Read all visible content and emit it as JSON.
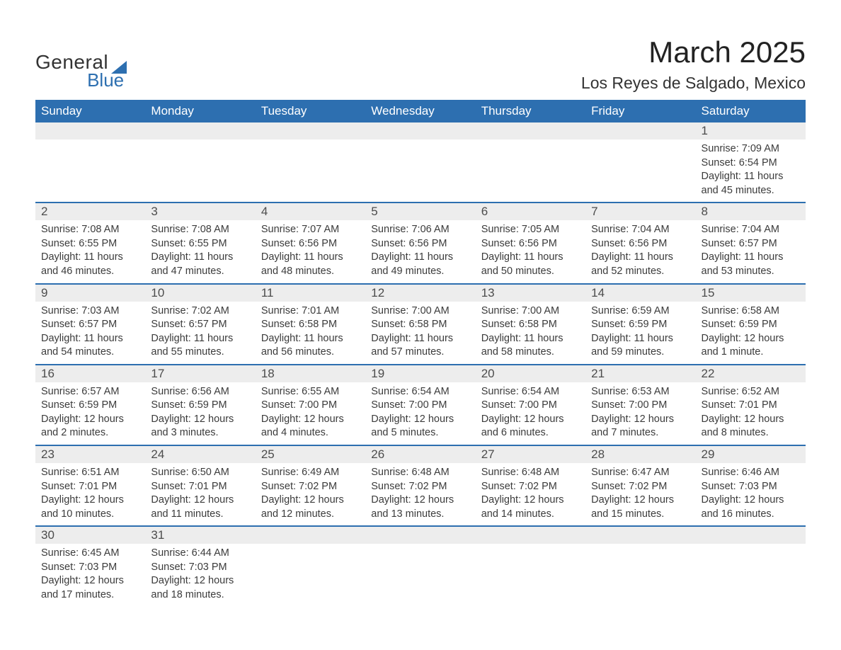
{
  "logo": {
    "line1": "General",
    "line2": "Blue"
  },
  "title": "March 2025",
  "location": "Los Reyes de Salgado, Mexico",
  "colors": {
    "header_bg": "#2d6fb0",
    "header_fg": "#ffffff",
    "daynum_bg": "#ededed",
    "text": "#3b3b3b",
    "row_border": "#2d6fb0",
    "page_bg": "#ffffff",
    "logo_accent": "#2d6fb0"
  },
  "type": "table",
  "columns": [
    "Sunday",
    "Monday",
    "Tuesday",
    "Wednesday",
    "Thursday",
    "Friday",
    "Saturday"
  ],
  "font": {
    "body_size_pt": 11,
    "title_size_pt": 32,
    "location_size_pt": 17,
    "header_size_pt": 13
  },
  "weeks": [
    [
      null,
      null,
      null,
      null,
      null,
      null,
      {
        "day": "1",
        "sunrise": "7:09 AM",
        "sunset": "6:54 PM",
        "daylight": "11 hours and 45 minutes."
      }
    ],
    [
      {
        "day": "2",
        "sunrise": "7:08 AM",
        "sunset": "6:55 PM",
        "daylight": "11 hours and 46 minutes."
      },
      {
        "day": "3",
        "sunrise": "7:08 AM",
        "sunset": "6:55 PM",
        "daylight": "11 hours and 47 minutes."
      },
      {
        "day": "4",
        "sunrise": "7:07 AM",
        "sunset": "6:56 PM",
        "daylight": "11 hours and 48 minutes."
      },
      {
        "day": "5",
        "sunrise": "7:06 AM",
        "sunset": "6:56 PM",
        "daylight": "11 hours and 49 minutes."
      },
      {
        "day": "6",
        "sunrise": "7:05 AM",
        "sunset": "6:56 PM",
        "daylight": "11 hours and 50 minutes."
      },
      {
        "day": "7",
        "sunrise": "7:04 AM",
        "sunset": "6:56 PM",
        "daylight": "11 hours and 52 minutes."
      },
      {
        "day": "8",
        "sunrise": "7:04 AM",
        "sunset": "6:57 PM",
        "daylight": "11 hours and 53 minutes."
      }
    ],
    [
      {
        "day": "9",
        "sunrise": "7:03 AM",
        "sunset": "6:57 PM",
        "daylight": "11 hours and 54 minutes."
      },
      {
        "day": "10",
        "sunrise": "7:02 AM",
        "sunset": "6:57 PM",
        "daylight": "11 hours and 55 minutes."
      },
      {
        "day": "11",
        "sunrise": "7:01 AM",
        "sunset": "6:58 PM",
        "daylight": "11 hours and 56 minutes."
      },
      {
        "day": "12",
        "sunrise": "7:00 AM",
        "sunset": "6:58 PM",
        "daylight": "11 hours and 57 minutes."
      },
      {
        "day": "13",
        "sunrise": "7:00 AM",
        "sunset": "6:58 PM",
        "daylight": "11 hours and 58 minutes."
      },
      {
        "day": "14",
        "sunrise": "6:59 AM",
        "sunset": "6:59 PM",
        "daylight": "11 hours and 59 minutes."
      },
      {
        "day": "15",
        "sunrise": "6:58 AM",
        "sunset": "6:59 PM",
        "daylight": "12 hours and 1 minute."
      }
    ],
    [
      {
        "day": "16",
        "sunrise": "6:57 AM",
        "sunset": "6:59 PM",
        "daylight": "12 hours and 2 minutes."
      },
      {
        "day": "17",
        "sunrise": "6:56 AM",
        "sunset": "6:59 PM",
        "daylight": "12 hours and 3 minutes."
      },
      {
        "day": "18",
        "sunrise": "6:55 AM",
        "sunset": "7:00 PM",
        "daylight": "12 hours and 4 minutes."
      },
      {
        "day": "19",
        "sunrise": "6:54 AM",
        "sunset": "7:00 PM",
        "daylight": "12 hours and 5 minutes."
      },
      {
        "day": "20",
        "sunrise": "6:54 AM",
        "sunset": "7:00 PM",
        "daylight": "12 hours and 6 minutes."
      },
      {
        "day": "21",
        "sunrise": "6:53 AM",
        "sunset": "7:00 PM",
        "daylight": "12 hours and 7 minutes."
      },
      {
        "day": "22",
        "sunrise": "6:52 AM",
        "sunset": "7:01 PM",
        "daylight": "12 hours and 8 minutes."
      }
    ],
    [
      {
        "day": "23",
        "sunrise": "6:51 AM",
        "sunset": "7:01 PM",
        "daylight": "12 hours and 10 minutes."
      },
      {
        "day": "24",
        "sunrise": "6:50 AM",
        "sunset": "7:01 PM",
        "daylight": "12 hours and 11 minutes."
      },
      {
        "day": "25",
        "sunrise": "6:49 AM",
        "sunset": "7:02 PM",
        "daylight": "12 hours and 12 minutes."
      },
      {
        "day": "26",
        "sunrise": "6:48 AM",
        "sunset": "7:02 PM",
        "daylight": "12 hours and 13 minutes."
      },
      {
        "day": "27",
        "sunrise": "6:48 AM",
        "sunset": "7:02 PM",
        "daylight": "12 hours and 14 minutes."
      },
      {
        "day": "28",
        "sunrise": "6:47 AM",
        "sunset": "7:02 PM",
        "daylight": "12 hours and 15 minutes."
      },
      {
        "day": "29",
        "sunrise": "6:46 AM",
        "sunset": "7:03 PM",
        "daylight": "12 hours and 16 minutes."
      }
    ],
    [
      {
        "day": "30",
        "sunrise": "6:45 AM",
        "sunset": "7:03 PM",
        "daylight": "12 hours and 17 minutes."
      },
      {
        "day": "31",
        "sunrise": "6:44 AM",
        "sunset": "7:03 PM",
        "daylight": "12 hours and 18 minutes."
      },
      null,
      null,
      null,
      null,
      null
    ]
  ],
  "labels": {
    "sunrise": "Sunrise: ",
    "sunset": "Sunset: ",
    "daylight": "Daylight: "
  }
}
